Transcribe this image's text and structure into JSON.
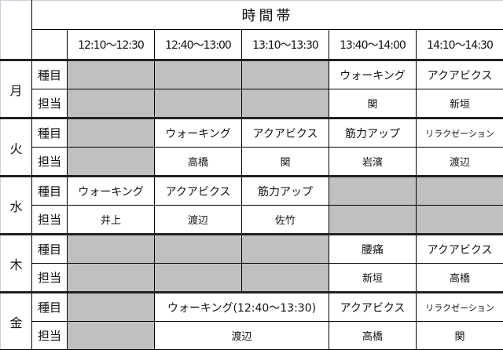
{
  "header": {
    "title": "時間帯",
    "times": [
      "12:10～12:30",
      "12:40～13:00",
      "13:10～13:30",
      "13:40～14:00",
      "14:10～14:30"
    ]
  },
  "row_labels": {
    "event": "種目",
    "staff": "担当"
  },
  "colors": {
    "unavailable": "#c0c0c0"
  },
  "days": [
    {
      "day": "月",
      "event": [
        {
          "text": "",
          "gray": true
        },
        {
          "text": "",
          "gray": true
        },
        {
          "text": "",
          "gray": true
        },
        {
          "text": "ウォーキング"
        },
        {
          "text": "アクアビクス"
        }
      ],
      "staff": [
        {
          "text": "",
          "gray": true
        },
        {
          "text": "",
          "gray": true
        },
        {
          "text": "",
          "gray": true
        },
        {
          "text": "関"
        },
        {
          "text": "新垣"
        }
      ]
    },
    {
      "day": "火",
      "event": [
        {
          "text": "",
          "gray": true
        },
        {
          "text": "ウォーキング"
        },
        {
          "text": "アクアビクス"
        },
        {
          "text": "筋力アップ"
        },
        {
          "text": "リラクゼーション",
          "small": true
        }
      ],
      "staff": [
        {
          "text": "",
          "gray": true
        },
        {
          "text": "高橋"
        },
        {
          "text": "関"
        },
        {
          "text": "岩濱"
        },
        {
          "text": "渡辺"
        }
      ]
    },
    {
      "day": "水",
      "event": [
        {
          "text": "ウォーキング"
        },
        {
          "text": "アクアビクス"
        },
        {
          "text": "筋力アップ"
        },
        {
          "text": "",
          "gray": true
        },
        {
          "text": "",
          "gray": true
        }
      ],
      "staff": [
        {
          "text": "井上"
        },
        {
          "text": "渡辺"
        },
        {
          "text": "佐竹"
        },
        {
          "text": "",
          "gray": true
        },
        {
          "text": "",
          "gray": true
        }
      ]
    },
    {
      "day": "木",
      "event": [
        {
          "text": "",
          "gray": true
        },
        {
          "text": "",
          "gray": true
        },
        {
          "text": "",
          "gray": true
        },
        {
          "text": "腰痛"
        },
        {
          "text": "アクアビクス"
        }
      ],
      "staff": [
        {
          "text": "",
          "gray": true
        },
        {
          "text": "",
          "gray": true
        },
        {
          "text": "",
          "gray": true
        },
        {
          "text": "新垣"
        },
        {
          "text": "高橋"
        }
      ]
    },
    {
      "day": "金",
      "event": [
        {
          "text": "",
          "gray": true
        },
        {
          "text": "ウォーキング(12:40～13:30)",
          "span": 2
        },
        {
          "text": "アクアビクス"
        },
        {
          "text": "リラクゼーション",
          "small": true
        }
      ],
      "staff": [
        {
          "text": "",
          "gray": true
        },
        {
          "text": "渡辺",
          "span": 2
        },
        {
          "text": "高橋"
        },
        {
          "text": "関"
        }
      ]
    }
  ]
}
